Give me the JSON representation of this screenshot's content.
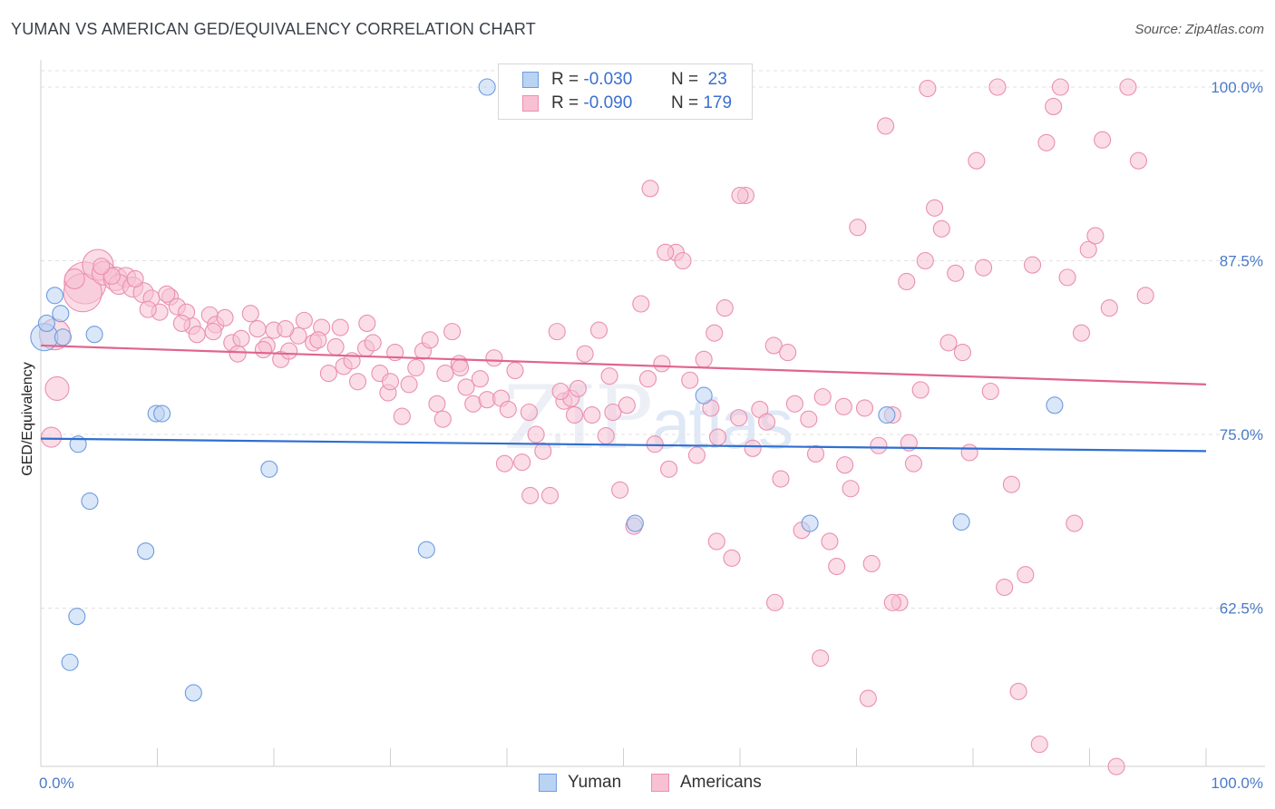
{
  "title": "YUMAN VS AMERICAN GED/EQUIVALENCY CORRELATION CHART",
  "source": "Source: ZipAtlas.com",
  "watermark": {
    "zip": "ZIP",
    "atlas": "atlas"
  },
  "legend_top": {
    "rows": [
      {
        "r_label": "R =",
        "r_value": "-0.030",
        "n_label": "N =",
        "n_value": "23"
      },
      {
        "r_label": "R =",
        "r_value": "-0.090",
        "n_label": "N =",
        "n_value": "179"
      }
    ]
  },
  "legend_bottom": {
    "series_a": "Yuman",
    "series_b": "Americans"
  },
  "colors": {
    "yuman_fill": "#b9d3f3",
    "yuman_stroke": "#6f9be0",
    "yuman_line": "#2f6fd0",
    "americans_fill": "#f7c1d3",
    "americans_stroke": "#ea8fb0",
    "americans_line": "#e0648f",
    "tick_text": "#4a7ac7",
    "grid": "#e2e2e2"
  },
  "chart_data": {
    "type": "scatter",
    "title": "YUMAN VS AMERICAN GED/EQUIVALENCY CORRELATION CHART",
    "xlabel": "",
    "ylabel": "GED/Equivalency",
    "xlim": [
      0,
      100
    ],
    "ylim": [
      52,
      101.5
    ],
    "x_tick_labels": [
      "0.0%",
      "100.0%"
    ],
    "y_ticks": [
      {
        "value": 100,
        "label": "100.0%"
      },
      {
        "value": 87.5,
        "label": "87.5%"
      },
      {
        "value": 75,
        "label": "75.0%"
      },
      {
        "value": 62.5,
        "label": "62.5%"
      }
    ],
    "grid": "horizontal dashed",
    "legend_placement": "top-center",
    "series": [
      {
        "name": "Yuman",
        "r": -0.03,
        "n": 23,
        "trend": {
          "x": [
            0,
            100
          ],
          "y": [
            74.7,
            73.8
          ]
        },
        "points": [
          [
            0.3,
            82.0,
            14
          ],
          [
            0.5,
            83.0,
            8
          ],
          [
            1.2,
            85.0,
            8
          ],
          [
            1.7,
            83.7,
            8
          ],
          [
            1.9,
            82.0,
            8
          ],
          [
            3.2,
            74.3,
            8
          ],
          [
            4.2,
            70.2,
            8
          ],
          [
            4.6,
            82.2,
            8
          ],
          [
            9.9,
            76.5,
            8
          ],
          [
            10.4,
            76.5,
            8
          ],
          [
            9.0,
            66.6,
            8
          ],
          [
            3.1,
            61.9,
            8
          ],
          [
            2.5,
            58.6,
            8
          ],
          [
            13.1,
            56.4,
            8
          ],
          [
            19.6,
            72.5,
            8
          ],
          [
            33.1,
            66.7,
            8
          ],
          [
            38.3,
            100.0,
            8
          ],
          [
            51.0,
            68.6,
            8
          ],
          [
            56.9,
            77.8,
            8
          ],
          [
            66.0,
            68.6,
            8
          ],
          [
            72.6,
            76.4,
            8
          ],
          [
            79.0,
            68.7,
            8
          ],
          [
            87.0,
            77.1,
            8
          ]
        ]
      },
      {
        "name": "Americans",
        "r": -0.09,
        "n": 179,
        "trend": {
          "x": [
            0,
            100
          ],
          "y": [
            81.4,
            78.6
          ]
        },
        "points": [
          [
            1.2,
            82.2,
            16
          ],
          [
            1.4,
            78.3,
            12
          ],
          [
            0.9,
            74.8,
            10
          ],
          [
            3.8,
            85.9,
            22
          ],
          [
            3.6,
            85.2,
            20
          ],
          [
            4.9,
            87.2,
            16
          ],
          [
            5.4,
            86.6,
            12
          ],
          [
            6.4,
            86.2,
            12
          ],
          [
            7.3,
            86.3,
            10
          ],
          [
            6.7,
            85.8,
            10
          ],
          [
            7.9,
            85.6,
            10
          ],
          [
            8.8,
            85.2,
            10
          ],
          [
            9.5,
            84.8,
            8
          ],
          [
            10.2,
            83.8,
            8
          ],
          [
            11.1,
            84.9,
            8
          ],
          [
            11.7,
            84.2,
            8
          ],
          [
            12.5,
            83.8,
            8
          ],
          [
            13.0,
            82.8,
            8
          ],
          [
            13.4,
            82.2,
            8
          ],
          [
            14.5,
            83.6,
            8
          ],
          [
            15.0,
            82.9,
            8
          ],
          [
            15.8,
            83.4,
            8
          ],
          [
            16.4,
            81.6,
            8
          ],
          [
            17.2,
            81.9,
            8
          ],
          [
            18.0,
            83.7,
            8
          ],
          [
            18.6,
            82.6,
            8
          ],
          [
            19.4,
            81.4,
            8
          ],
          [
            20.0,
            82.5,
            8
          ],
          [
            20.6,
            80.4,
            8
          ],
          [
            21.3,
            81.0,
            8
          ],
          [
            22.1,
            82.1,
            8
          ],
          [
            22.6,
            83.2,
            8
          ],
          [
            23.4,
            81.6,
            8
          ],
          [
            24.1,
            82.7,
            8
          ],
          [
            24.7,
            79.4,
            8
          ],
          [
            25.3,
            81.3,
            8
          ],
          [
            26.0,
            79.9,
            8
          ],
          [
            26.7,
            80.3,
            8
          ],
          [
            27.2,
            78.8,
            8
          ],
          [
            27.9,
            81.2,
            8
          ],
          [
            28.5,
            81.6,
            8
          ],
          [
            29.1,
            79.4,
            8
          ],
          [
            29.8,
            78.0,
            8
          ],
          [
            30.4,
            80.9,
            8
          ],
          [
            31.0,
            76.3,
            8
          ],
          [
            31.6,
            78.6,
            8
          ],
          [
            32.2,
            79.8,
            8
          ],
          [
            32.8,
            81.0,
            8
          ],
          [
            33.4,
            81.8,
            8
          ],
          [
            34.0,
            77.2,
            8
          ],
          [
            34.7,
            79.4,
            8
          ],
          [
            35.3,
            82.4,
            8
          ],
          [
            35.9,
            80.1,
            8
          ],
          [
            36.5,
            78.4,
            8
          ],
          [
            37.1,
            77.2,
            8
          ],
          [
            37.7,
            79.0,
            8
          ],
          [
            38.3,
            77.5,
            8
          ],
          [
            38.9,
            80.5,
            8
          ],
          [
            39.5,
            77.6,
            8
          ],
          [
            40.1,
            76.8,
            8
          ],
          [
            40.7,
            79.6,
            8
          ],
          [
            41.3,
            73.0,
            8
          ],
          [
            41.9,
            76.6,
            8
          ],
          [
            42.5,
            75.0,
            8
          ],
          [
            43.1,
            73.8,
            8
          ],
          [
            43.7,
            70.6,
            8
          ],
          [
            44.3,
            82.4,
            8
          ],
          [
            44.9,
            77.4,
            8
          ],
          [
            45.5,
            77.6,
            8
          ],
          [
            46.1,
            78.3,
            8
          ],
          [
            46.7,
            80.8,
            8
          ],
          [
            47.3,
            76.4,
            8
          ],
          [
            47.9,
            82.5,
            8
          ],
          [
            48.5,
            74.9,
            8
          ],
          [
            49.1,
            76.6,
            8
          ],
          [
            49.7,
            71.0,
            8
          ],
          [
            50.3,
            77.1,
            8
          ],
          [
            50.9,
            68.4,
            8
          ],
          [
            51.5,
            84.4,
            8
          ],
          [
            52.1,
            79.0,
            8
          ],
          [
            52.7,
            74.3,
            8
          ],
          [
            53.3,
            80.1,
            8
          ],
          [
            53.9,
            72.5,
            8
          ],
          [
            54.5,
            88.1,
            8
          ],
          [
            55.1,
            87.5,
            8
          ],
          [
            55.7,
            78.9,
            8
          ],
          [
            56.3,
            73.5,
            8
          ],
          [
            56.9,
            80.4,
            8
          ],
          [
            57.5,
            76.9,
            8
          ],
          [
            58.1,
            74.8,
            8
          ],
          [
            58.7,
            84.1,
            8
          ],
          [
            59.3,
            66.1,
            8
          ],
          [
            59.9,
            76.2,
            8
          ],
          [
            60.5,
            92.2,
            8
          ],
          [
            61.1,
            74.0,
            8
          ],
          [
            61.7,
            76.8,
            8
          ],
          [
            62.3,
            75.9,
            8
          ],
          [
            62.9,
            81.4,
            8
          ],
          [
            63.5,
            71.8,
            8
          ],
          [
            64.1,
            80.9,
            8
          ],
          [
            64.7,
            77.2,
            8
          ],
          [
            65.3,
            68.1,
            8
          ],
          [
            65.9,
            76.1,
            8
          ],
          [
            66.5,
            73.6,
            8
          ],
          [
            67.1,
            77.7,
            8
          ],
          [
            67.7,
            67.3,
            8
          ],
          [
            68.3,
            65.5,
            8
          ],
          [
            68.9,
            77.0,
            8
          ],
          [
            69.5,
            71.1,
            8
          ],
          [
            70.1,
            89.9,
            8
          ],
          [
            70.7,
            76.9,
            8
          ],
          [
            71.3,
            65.7,
            8
          ],
          [
            71.9,
            74.2,
            8
          ],
          [
            72.5,
            97.2,
            8
          ],
          [
            73.1,
            76.4,
            8
          ],
          [
            73.7,
            62.9,
            8
          ],
          [
            74.3,
            86.0,
            8
          ],
          [
            74.9,
            72.9,
            8
          ],
          [
            75.5,
            78.2,
            8
          ],
          [
            76.1,
            99.9,
            8
          ],
          [
            76.7,
            91.3,
            8
          ],
          [
            77.3,
            89.8,
            8
          ],
          [
            77.9,
            81.6,
            8
          ],
          [
            78.5,
            86.6,
            8
          ],
          [
            79.1,
            80.9,
            8
          ],
          [
            79.7,
            73.7,
            8
          ],
          [
            80.3,
            94.7,
            8
          ],
          [
            80.9,
            87.0,
            8
          ],
          [
            81.5,
            78.1,
            8
          ],
          [
            82.1,
            100.0,
            8
          ],
          [
            82.7,
            64.0,
            8
          ],
          [
            83.3,
            71.4,
            8
          ],
          [
            83.9,
            56.5,
            8
          ],
          [
            84.5,
            64.9,
            8
          ],
          [
            85.1,
            87.2,
            8
          ],
          [
            85.7,
            52.7,
            8
          ],
          [
            86.3,
            96.0,
            8
          ],
          [
            86.9,
            98.6,
            8
          ],
          [
            87.5,
            100.0,
            8
          ],
          [
            88.1,
            86.3,
            8
          ],
          [
            88.7,
            68.6,
            8
          ],
          [
            89.3,
            82.3,
            8
          ],
          [
            89.9,
            88.3,
            8
          ],
          [
            90.5,
            89.3,
            8
          ],
          [
            91.1,
            96.2,
            8
          ],
          [
            91.7,
            84.1,
            8
          ],
          [
            92.3,
            51.1,
            8
          ],
          [
            93.3,
            100.0,
            8
          ],
          [
            94.2,
            94.7,
            8
          ],
          [
            94.8,
            85.0,
            8
          ],
          [
            39.8,
            72.9,
            8
          ],
          [
            42.0,
            70.6,
            8
          ],
          [
            45.8,
            76.4,
            8
          ],
          [
            58.0,
            67.3,
            8
          ],
          [
            63.0,
            62.9,
            8
          ],
          [
            66.9,
            58.9,
            8
          ],
          [
            71.0,
            56.0,
            8
          ],
          [
            73.1,
            62.9,
            8
          ],
          [
            74.5,
            74.4,
            8
          ],
          [
            75.9,
            87.5,
            8
          ],
          [
            69.0,
            72.8,
            8
          ],
          [
            60.0,
            92.2,
            8
          ],
          [
            53.6,
            88.1,
            8
          ],
          [
            52.3,
            92.7,
            8
          ],
          [
            57.8,
            82.3,
            8
          ],
          [
            48.8,
            79.2,
            8
          ],
          [
            44.6,
            78.1,
            8
          ],
          [
            36.0,
            79.8,
            8
          ],
          [
            34.5,
            76.1,
            8
          ],
          [
            30.0,
            78.8,
            8
          ],
          [
            28.0,
            83.0,
            8
          ],
          [
            25.7,
            82.7,
            8
          ],
          [
            23.8,
            81.8,
            8
          ],
          [
            21.0,
            82.6,
            8
          ],
          [
            19.1,
            81.1,
            8
          ],
          [
            16.9,
            80.8,
            8
          ],
          [
            14.8,
            82.4,
            8
          ],
          [
            12.1,
            83.0,
            8
          ],
          [
            10.8,
            85.1,
            8
          ],
          [
            9.2,
            84.0,
            8
          ],
          [
            8.1,
            86.2,
            8
          ],
          [
            6.1,
            86.4,
            8
          ],
          [
            5.2,
            87.1,
            8
          ],
          [
            2.9,
            86.2,
            10
          ]
        ]
      }
    ]
  }
}
